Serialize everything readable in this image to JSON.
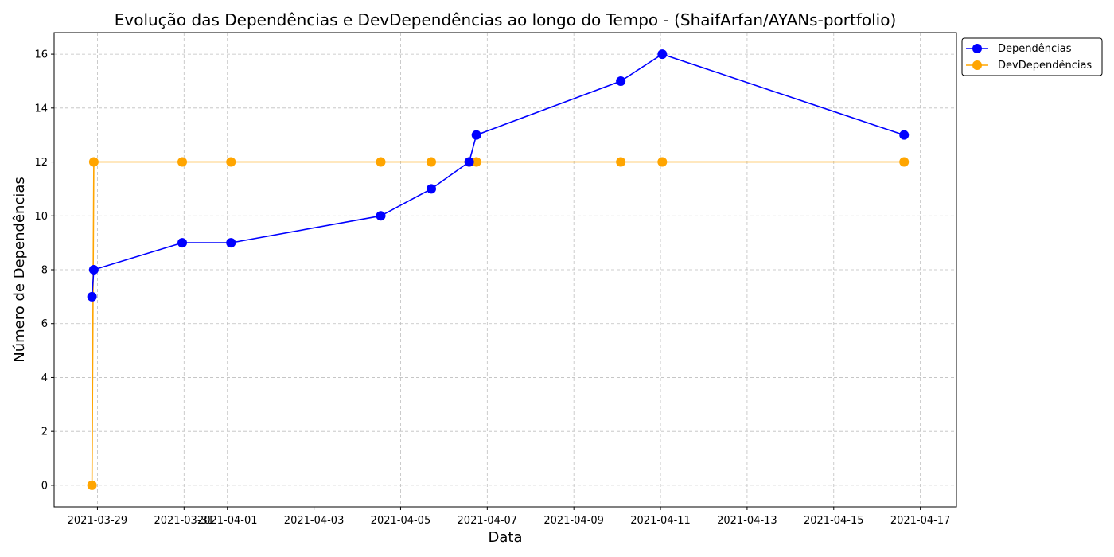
{
  "chart_data": {
    "type": "line",
    "title": "Evolução das Dependências e DevDependências ao longo do Tempo - (ShaifArfan/AYANs-portfolio)",
    "xlabel": "Data",
    "ylabel": "Número de Dependências",
    "x_ticks": [
      "2021-03-29",
      "2021-03-31",
      "2021-04-01",
      "2021-04-03",
      "2021-04-05",
      "2021-04-07",
      "2021-04-09",
      "2021-04-11",
      "2021-04-13",
      "2021-04-15",
      "2021-04-17"
    ],
    "y_ticks": [
      0,
      2,
      4,
      6,
      8,
      10,
      12,
      14,
      16
    ],
    "xlim": [
      "2021-03-28 00:00",
      "2021-04-17 20:00"
    ],
    "ylim": [
      -0.8,
      16.8
    ],
    "grid": true,
    "legend_position": "outside-top-right",
    "series": [
      {
        "name": "Dependências",
        "color": "#0000ff",
        "points": [
          {
            "x": "2021-03-28 21:00",
            "y": 7
          },
          {
            "x": "2021-03-28 22:00",
            "y": 8
          },
          {
            "x": "2021-03-30 23:00",
            "y": 9
          },
          {
            "x": "2021-04-01 02:00",
            "y": 9
          },
          {
            "x": "2021-04-04 13:00",
            "y": 10
          },
          {
            "x": "2021-04-05 17:00",
            "y": 11
          },
          {
            "x": "2021-04-06 14:00",
            "y": 12
          },
          {
            "x": "2021-04-06 18:00",
            "y": 13
          },
          {
            "x": "2021-04-10 02:00",
            "y": 15
          },
          {
            "x": "2021-04-11 01:00",
            "y": 16
          },
          {
            "x": "2021-04-16 15:00",
            "y": 13
          }
        ]
      },
      {
        "name": "DevDependências",
        "color": "#ffa500",
        "points": [
          {
            "x": "2021-03-28 21:00",
            "y": 0
          },
          {
            "x": "2021-03-28 22:00",
            "y": 12
          },
          {
            "x": "2021-03-30 23:00",
            "y": 12
          },
          {
            "x": "2021-04-01 02:00",
            "y": 12
          },
          {
            "x": "2021-04-04 13:00",
            "y": 12
          },
          {
            "x": "2021-04-05 17:00",
            "y": 12
          },
          {
            "x": "2021-04-06 14:00",
            "y": 12
          },
          {
            "x": "2021-04-06 18:00",
            "y": 12
          },
          {
            "x": "2021-04-10 02:00",
            "y": 12
          },
          {
            "x": "2021-04-11 01:00",
            "y": 12
          },
          {
            "x": "2021-04-16 15:00",
            "y": 12
          }
        ]
      }
    ]
  }
}
